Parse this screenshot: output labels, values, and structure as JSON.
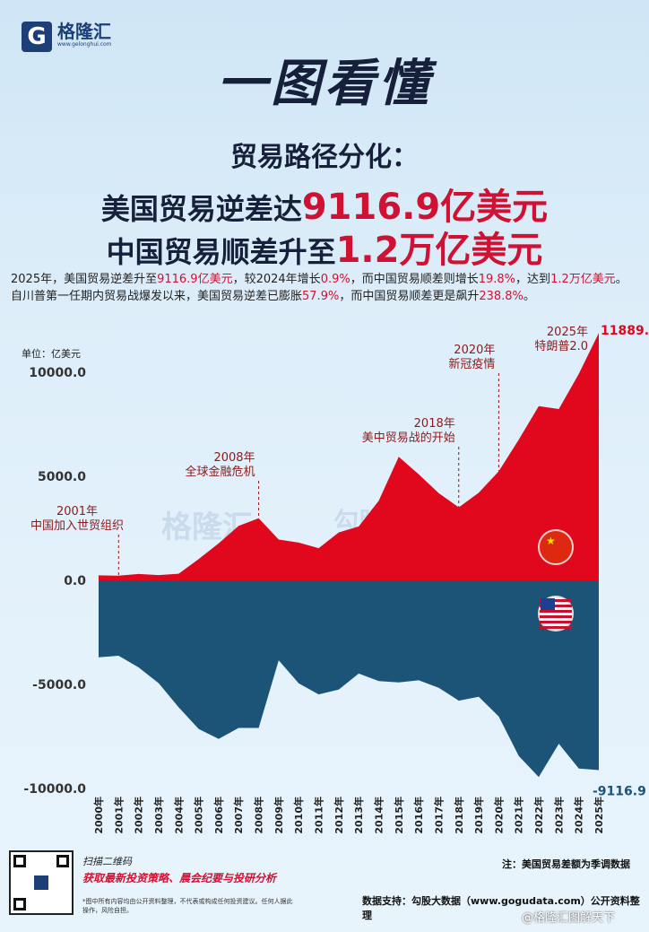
{
  "brand": {
    "name": "格隆汇",
    "url": "www.gelonghui.com",
    "mark": "G"
  },
  "main_title": "一图看懂",
  "headline": {
    "line1": "贸易路径分化：",
    "line2_prefix": "美国贸易逆差达",
    "line2_value": "9116.9亿美元",
    "line3_prefix": "中国贸易顺差升至",
    "line3_value": "1.2万亿美元"
  },
  "summary": [
    {
      "t": "2025年，美国贸易逆差升至",
      "hl": false
    },
    {
      "t": "9116.9亿美元",
      "hl": true
    },
    {
      "t": "，较2024年增长",
      "hl": false
    },
    {
      "t": "0.9%",
      "hl": true
    },
    {
      "t": "，而中国贸易顺差则增长",
      "hl": false
    },
    {
      "t": "19.8%",
      "hl": true
    },
    {
      "t": "，达到",
      "hl": false
    },
    {
      "t": "1.2万亿美元",
      "hl": true
    },
    {
      "t": "。自川普第一任期内贸易战爆发以来，美国贸易逆差已膨胀",
      "hl": false
    },
    {
      "t": "57.9%",
      "hl": true
    },
    {
      "t": "，而中国贸易顺差更是飙升",
      "hl": false
    },
    {
      "t": "238.8%",
      "hl": true
    },
    {
      "t": "。",
      "hl": false
    }
  ],
  "unit_label": "单位：亿美元",
  "colors": {
    "china": "#e1081e",
    "us": "#1c5477",
    "annotation": "#8b1a1a"
  },
  "chart_data": {
    "type": "area",
    "x": [
      "2000年",
      "2001年",
      "2002年",
      "2003年",
      "2004年",
      "2005年",
      "2006年",
      "2007年",
      "2008年",
      "2009年",
      "2010年",
      "2011年",
      "2012年",
      "2013年",
      "2014年",
      "2015年",
      "2016年",
      "2017年",
      "2018年",
      "2019年",
      "2020年",
      "2021年",
      "2022年",
      "2023年",
      "2024年",
      "2025年"
    ],
    "ylim": [
      -10500,
      12000
    ],
    "yticks": [
      10000,
      5000,
      0,
      -5000,
      -10000
    ],
    "ytick_labels": [
      "10000.0",
      "5000.0",
      "0.0",
      "-5000.0",
      "-10000.0"
    ],
    "series": [
      {
        "key": "china",
        "values": [
          241,
          226,
          304,
          255,
          321,
          1020,
          1775,
          2622,
          2981,
          1961,
          1815,
          1549,
          2303,
          2590,
          3825,
          5939,
          5097,
          4196,
          3509,
          4211,
          5240,
          6764,
          8377,
          8232,
          9922,
          11889.5
        ],
        "max_label": "11889.5"
      },
      {
        "key": "us",
        "values": [
          -3700,
          -3620,
          -4180,
          -4940,
          -6100,
          -7140,
          -7620,
          -7090,
          -7090,
          -3840,
          -4950,
          -5480,
          -5250,
          -4480,
          -4840,
          -4900,
          -4800,
          -5160,
          -5780,
          -5590,
          -6540,
          -8440,
          -9450,
          -7850,
          -9040,
          -9116.9
        ],
        "min_label": "-9116.9"
      }
    ],
    "annotations": [
      {
        "year": "2001年",
        "line1": "2001年",
        "line2": "中国加入世贸组织"
      },
      {
        "year": "2008年",
        "line1": "2008年",
        "line2": "全球金融危机"
      },
      {
        "year": "2018年",
        "line1": "2018年",
        "line2": "美中贸易战的开始"
      },
      {
        "year": "2020年",
        "line1": "2020年",
        "line2": "新冠疫情"
      },
      {
        "year": "2025年",
        "line1": "2025年",
        "line2": "特朗普2.0"
      }
    ]
  },
  "watermark": {
    "left": "格隆汇",
    "right": "勾股大数据",
    "sub": "www.gogudata.com"
  },
  "footer": {
    "scan_label": "扫描二维码",
    "scan_cta": "获取最新投资策略、晨会纪要与投研分析",
    "disclaimer": "*图中所有内容均由公开资料整理，不代表或构成任何投资建议。任何人据此操作，风险自担。",
    "note": "注：美国贸易差额为季调数据",
    "source": "数据支持：勾股大数据（www.gogudata.com）公开资料整理",
    "weibo": "@格隆汇图解天下"
  }
}
